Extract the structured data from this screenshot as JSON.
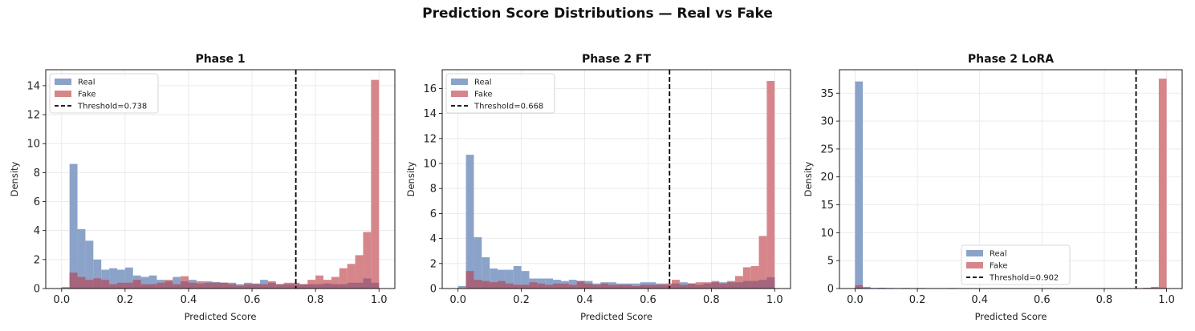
{
  "figure": {
    "title": "Prediction Score Distributions — Real vs Fake"
  },
  "colors": {
    "real": "#8BA3C9",
    "fake": "#D6868A",
    "overlap": "#A5657D",
    "threshold": "#000000"
  },
  "chart_data": [
    {
      "type": "bar",
      "title": "Phase 1",
      "xlabel": "Predicted Score",
      "ylabel": "Density",
      "xlim": [
        -0.05,
        1.05
      ],
      "ylim": [
        0,
        15.1
      ],
      "xticks": [
        "0.0",
        "0.2",
        "0.4",
        "0.6",
        "0.8",
        "1.0"
      ],
      "xtick_values": [
        0,
        0.2,
        0.4,
        0.6,
        0.8,
        1.0
      ],
      "yticks": [
        0,
        2,
        4,
        6,
        8,
        10,
        12,
        14
      ],
      "bin_width": 0.025,
      "bin_start": 0.0,
      "threshold": 0.738,
      "legend_loc": "upper left",
      "series": [
        {
          "name": "Real",
          "values": [
            0.1,
            8.6,
            4.1,
            3.3,
            2.0,
            1.3,
            1.4,
            1.3,
            1.45,
            0.9,
            0.8,
            0.9,
            0.6,
            0.5,
            0.8,
            0.5,
            0.6,
            0.35,
            0.5,
            0.45,
            0.4,
            0.4,
            0.3,
            0.4,
            0.35,
            0.6,
            0.4,
            0.3,
            0.3,
            0.3,
            0.3,
            0.3,
            0.3,
            0.35,
            0.3,
            0.3,
            0.4,
            0.4,
            0.7,
            0.4
          ]
        },
        {
          "name": "Fake",
          "values": [
            0.0,
            1.1,
            0.8,
            0.6,
            0.7,
            0.6,
            0.3,
            0.4,
            0.4,
            0.6,
            0.3,
            0.3,
            0.4,
            0.6,
            0.3,
            0.85,
            0.4,
            0.5,
            0.4,
            0.4,
            0.4,
            0.3,
            0.2,
            0.3,
            0.3,
            0.3,
            0.5,
            0.3,
            0.4,
            0.4,
            0.3,
            0.6,
            0.9,
            0.6,
            0.8,
            1.4,
            1.7,
            2.3,
            3.9,
            14.4
          ]
        },
        {
          "name": "Threshold=0.738",
          "kind": "vline",
          "value": 0.738
        }
      ]
    },
    {
      "type": "bar",
      "title": "Phase 2 FT",
      "xlabel": "Predicted Score",
      "ylabel": "Density",
      "xlim": [
        -0.05,
        1.05
      ],
      "ylim": [
        0,
        17.5
      ],
      "xticks": [
        "0.0",
        "0.2",
        "0.4",
        "0.6",
        "0.8",
        "1.0"
      ],
      "xtick_values": [
        0,
        0.2,
        0.4,
        0.6,
        0.8,
        1.0
      ],
      "yticks": [
        0,
        2,
        4,
        6,
        8,
        10,
        12,
        14,
        16
      ],
      "bin_width": 0.025,
      "bin_start": 0.0,
      "threshold": 0.668,
      "legend_loc": "upper left",
      "series": [
        {
          "name": "Real",
          "values": [
            0.2,
            10.7,
            4.1,
            2.5,
            1.6,
            1.5,
            1.5,
            1.8,
            1.4,
            0.8,
            0.8,
            0.8,
            0.7,
            0.6,
            0.7,
            0.6,
            0.6,
            0.4,
            0.5,
            0.5,
            0.4,
            0.4,
            0.4,
            0.5,
            0.5,
            0.4,
            0.3,
            0.4,
            0.5,
            0.4,
            0.3,
            0.4,
            0.6,
            0.5,
            0.5,
            0.5,
            0.6,
            0.6,
            0.7,
            0.9
          ]
        },
        {
          "name": "Fake",
          "values": [
            0.0,
            1.4,
            0.7,
            0.6,
            0.5,
            0.6,
            0.4,
            0.3,
            0.3,
            0.5,
            0.4,
            0.3,
            0.4,
            0.4,
            0.3,
            0.6,
            0.4,
            0.3,
            0.4,
            0.3,
            0.3,
            0.3,
            0.2,
            0.3,
            0.3,
            0.3,
            0.4,
            0.7,
            0.3,
            0.4,
            0.5,
            0.5,
            0.5,
            0.4,
            0.6,
            1.0,
            1.7,
            1.8,
            4.2,
            16.6
          ]
        },
        {
          "name": "Threshold=0.668",
          "kind": "vline",
          "value": 0.668
        }
      ]
    },
    {
      "type": "bar",
      "title": "Phase 2 LoRA",
      "xlabel": "Predicted Score",
      "ylabel": "Density",
      "xlim": [
        -0.05,
        1.05
      ],
      "ylim": [
        0,
        39.2
      ],
      "xticks": [
        "0.0",
        "0.2",
        "0.4",
        "0.6",
        "0.8",
        "1.0"
      ],
      "xtick_values": [
        0,
        0.2,
        0.4,
        0.6,
        0.8,
        1.0
      ],
      "yticks": [
        0,
        5,
        10,
        15,
        20,
        25,
        30,
        35
      ],
      "bin_width": 0.025,
      "bin_start": 0.0,
      "threshold": 0.902,
      "legend_loc": "lower center",
      "series": [
        {
          "name": "Real",
          "values": [
            37.1,
            0.3,
            0.1,
            0.15,
            0.1,
            0.05,
            0.1,
            0.05,
            0.1,
            0.05,
            0.05,
            0.05,
            0.1,
            0.05,
            0.05,
            0.05,
            0.05,
            0.05,
            0.05,
            0.05,
            0.05,
            0.05,
            0.05,
            0.05,
            0.05,
            0.05,
            0.05,
            0.05,
            0.05,
            0.05,
            0.05,
            0.05,
            0.05,
            0.05,
            0.05,
            0.05,
            0.05,
            0.1,
            0.05,
            0.1
          ]
        },
        {
          "name": "Fake",
          "values": [
            0.6,
            0.0,
            0.05,
            0.0,
            0.0,
            0.05,
            0.05,
            0.05,
            0.05,
            0.0,
            0.05,
            0.0,
            0.0,
            0.05,
            0.0,
            0.0,
            0.0,
            0.0,
            0.0,
            0.0,
            0.0,
            0.05,
            0.0,
            0.0,
            0.0,
            0.0,
            0.0,
            0.05,
            0.0,
            0.0,
            0.0,
            0.0,
            0.0,
            0.05,
            0.0,
            0.05,
            0.05,
            0.1,
            0.3,
            37.6
          ]
        },
        {
          "name": "Threshold=0.902",
          "kind": "vline",
          "value": 0.902
        }
      ]
    }
  ]
}
